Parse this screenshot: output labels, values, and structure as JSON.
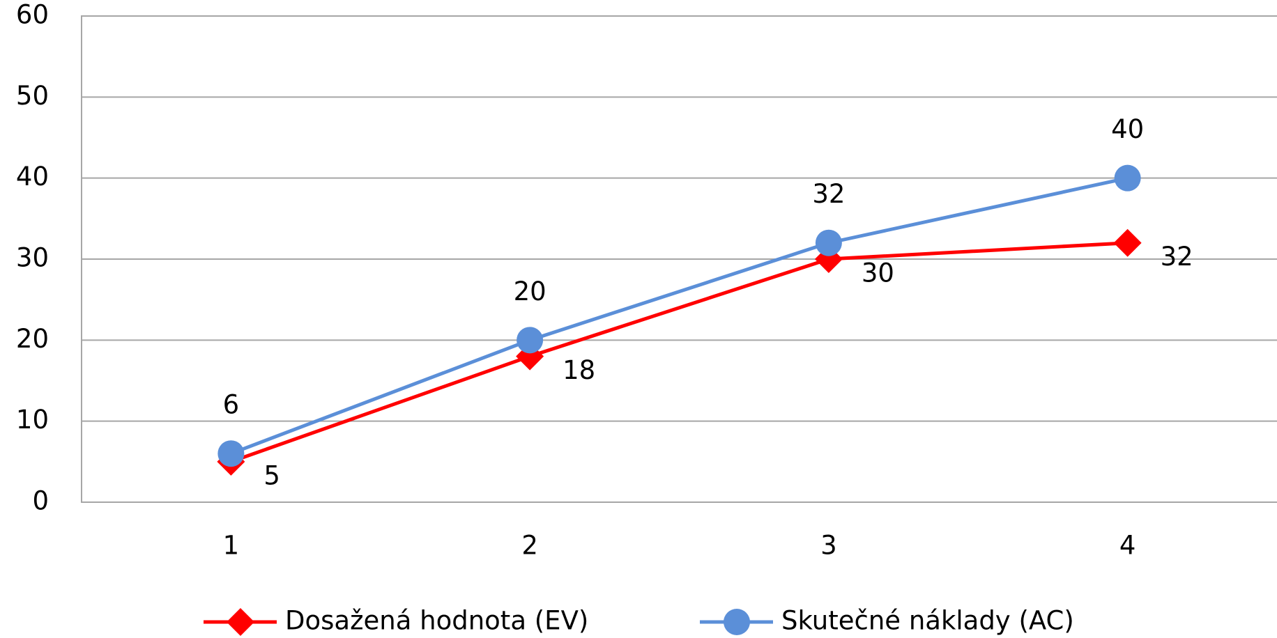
{
  "chart_data": {
    "type": "line",
    "categories": [
      "1",
      "2",
      "3",
      "4"
    ],
    "series": [
      {
        "name": "Dosažená hodnota (EV)",
        "color": "#ff0000",
        "marker": "diamond",
        "values": [
          5,
          18,
          30,
          32
        ]
      },
      {
        "name": "Skutečné náklady (AC)",
        "color": "#5b8fd8",
        "marker": "circle",
        "values": [
          6,
          20,
          32,
          40
        ]
      }
    ],
    "ylim": [
      0,
      60
    ],
    "yticks": [
      0,
      10,
      20,
      30,
      40,
      50,
      60
    ],
    "grid": true,
    "legend": "bottom"
  }
}
